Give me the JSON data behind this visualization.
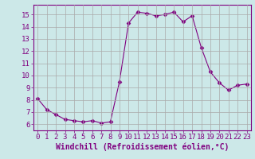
{
  "x": [
    0,
    1,
    2,
    3,
    4,
    5,
    6,
    7,
    8,
    9,
    10,
    11,
    12,
    13,
    14,
    15,
    16,
    17,
    18,
    19,
    20,
    21,
    22,
    23
  ],
  "y": [
    8.1,
    7.2,
    6.8,
    6.4,
    6.3,
    6.2,
    6.3,
    6.1,
    6.2,
    9.5,
    14.3,
    15.2,
    15.1,
    14.9,
    15.0,
    15.2,
    14.4,
    14.9,
    12.3,
    10.3,
    9.4,
    8.8,
    9.2,
    9.3
  ],
  "line_color": "#800080",
  "marker": "D",
  "marker_size": 2.5,
  "background_color": "#cce8e8",
  "grid_color": "#aaaaaa",
  "xlabel": "Windchill (Refroidissement éolien,°C)",
  "xlabel_color": "#800080",
  "xlabel_fontsize": 7,
  "tick_color": "#800080",
  "tick_fontsize": 6.5,
  "ylim": [
    5.5,
    15.8
  ],
  "xlim": [
    -0.5,
    23.5
  ],
  "yticks": [
    6,
    7,
    8,
    9,
    10,
    11,
    12,
    13,
    14,
    15
  ],
  "xticks": [
    0,
    1,
    2,
    3,
    4,
    5,
    6,
    7,
    8,
    9,
    10,
    11,
    12,
    13,
    14,
    15,
    16,
    17,
    18,
    19,
    20,
    21,
    22,
    23
  ]
}
